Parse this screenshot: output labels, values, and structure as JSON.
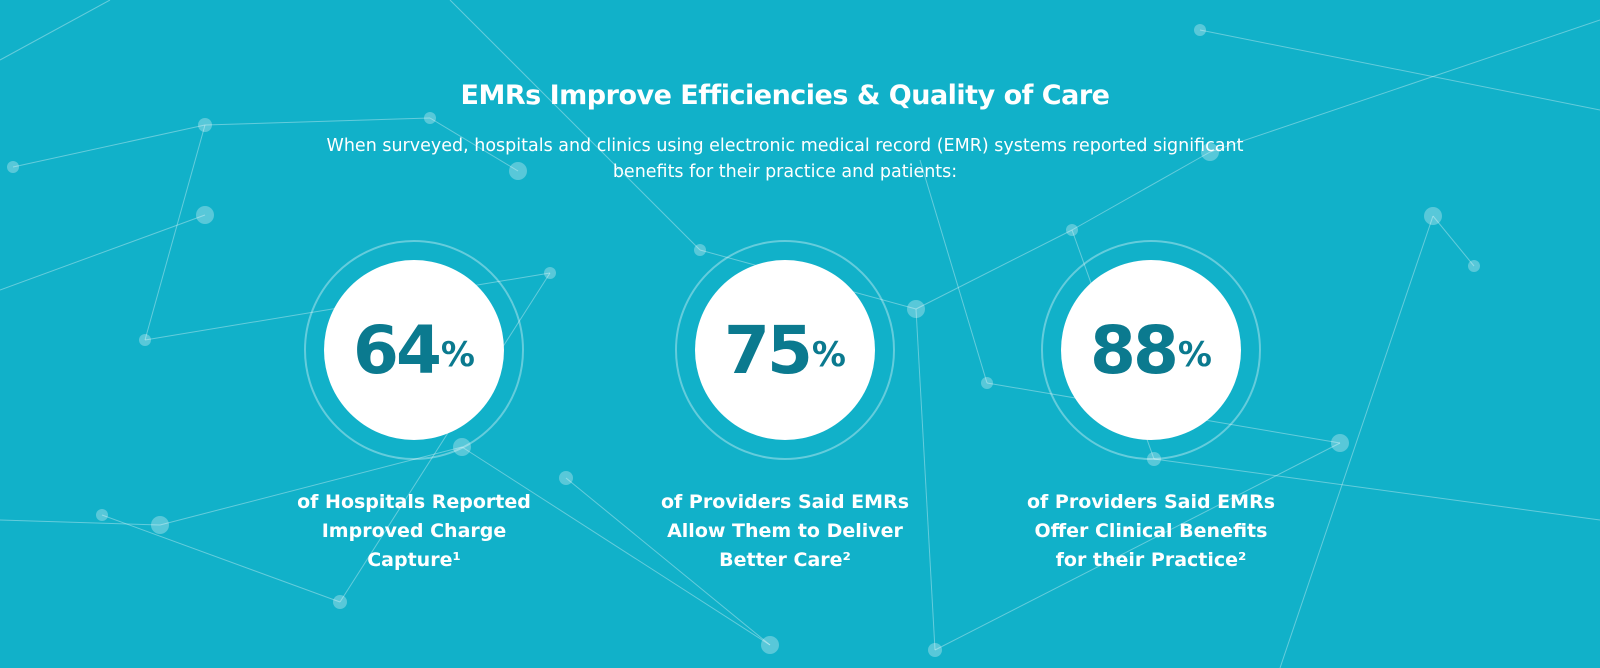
{
  "title": "EMRs Improve Efficiencies & Quality of Care",
  "subtitle": "When surveyed, hospitals and clinics using electronic medical record (EMR) systems reported significant benefits for their practice and patients:",
  "stats": [
    {
      "value": "64",
      "unit": "%",
      "label": "of Hospitals Reported Improved Charge Capture¹"
    },
    {
      "value": "75",
      "unit": "%",
      "label": "of Providers Said EMRs Allow Them to Deliver Better Care²"
    },
    {
      "value": "88",
      "unit": "%",
      "label": "of Providers Said EMRs Offer Clinical Benefits for their Practice²"
    }
  ],
  "colors": {
    "background": "#11b1c9",
    "number": "#0b7a8f"
  }
}
